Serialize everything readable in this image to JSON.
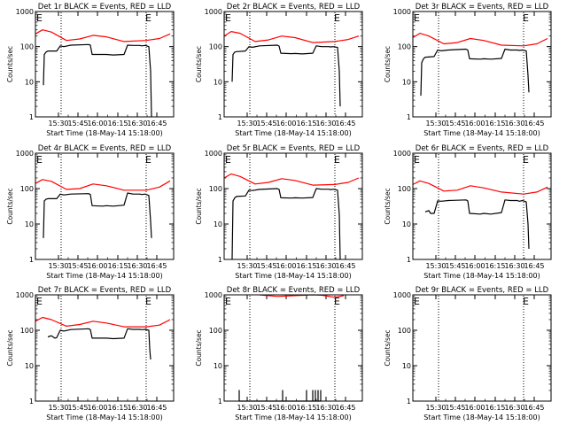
{
  "chart_data": [
    {
      "type": "line",
      "title": "Det 1r BLACK = Events, RED = LLD",
      "xlabel": "Start Time (18-May-14 15:18:00)",
      "ylabel": "Counts/sec",
      "yscale": "log",
      "ylim": [
        1,
        1000
      ],
      "x_tick_labels": [
        "15:30",
        "15:45",
        "16:00",
        "16:15",
        "16:30",
        "16:45"
      ],
      "markers": [
        "E",
        "E"
      ],
      "series": [
        {
          "color": "#ff0000",
          "x": [
            0,
            8,
            18,
            35,
            50,
            65,
            80,
            100,
            125,
            140,
            152
          ],
          "y": [
            230,
            300,
            260,
            150,
            165,
            210,
            190,
            140,
            150,
            170,
            230
          ]
        },
        {
          "color": "#000000",
          "x": [
            9,
            10,
            12,
            14,
            24,
            28,
            32,
            40,
            60,
            62,
            64,
            76,
            80,
            88,
            100,
            104,
            110,
            118,
            120,
            124,
            128,
            130,
            131
          ],
          "y": [
            8,
            60,
            70,
            75,
            75,
            105,
            100,
            110,
            115,
            110,
            60,
            60,
            60,
            58,
            60,
            110,
            108,
            108,
            105,
            108,
            100,
            20,
            1
          ]
        }
      ]
    },
    {
      "type": "line",
      "title": "Det 2r BLACK = Events, RED = LLD",
      "xlabel": "Start Time (18-May-14 15:18:00)",
      "ylabel": "Counts/sec",
      "yscale": "log",
      "ylim": [
        1,
        1000
      ],
      "x_tick_labels": [
        "15:30",
        "15:45",
        "16:00",
        "16:15",
        "16:30",
        "16:45"
      ],
      "markers": [
        "E",
        "E"
      ],
      "series": [
        {
          "color": "#ff0000",
          "x": [
            0,
            8,
            18,
            35,
            50,
            65,
            80,
            100,
            125,
            140,
            152
          ],
          "y": [
            200,
            270,
            240,
            140,
            155,
            200,
            180,
            130,
            140,
            160,
            200
          ]
        },
        {
          "color": "#000000",
          "x": [
            9,
            10,
            12,
            14,
            24,
            28,
            32,
            40,
            60,
            62,
            64,
            76,
            80,
            88,
            100,
            104,
            110,
            118,
            120,
            124,
            128,
            130,
            131
          ],
          "y": [
            10,
            60,
            70,
            72,
            75,
            100,
            96,
            105,
            110,
            104,
            65,
            63,
            64,
            62,
            65,
            105,
            100,
            100,
            98,
            100,
            95,
            20,
            2
          ]
        }
      ]
    },
    {
      "type": "line",
      "title": "Det 3r BLACK = Events, RED = LLD",
      "xlabel": "Start Time (18-May-14 15:18:00)",
      "ylabel": "Counts/sec",
      "yscale": "log",
      "ylim": [
        1,
        1000
      ],
      "x_tick_labels": [
        "15:30",
        "15:45",
        "16:00",
        "16:15",
        "16:30",
        "16:45"
      ],
      "markers": [
        "E",
        "E"
      ],
      "series": [
        {
          "color": "#ff0000",
          "x": [
            0,
            8,
            18,
            35,
            50,
            65,
            80,
            100,
            125,
            140,
            152
          ],
          "y": [
            180,
            240,
            200,
            120,
            130,
            170,
            150,
            110,
            105,
            120,
            170
          ]
        },
        {
          "color": "#000000",
          "x": [
            9,
            10,
            12,
            14,
            24,
            28,
            32,
            40,
            60,
            62,
            64,
            76,
            80,
            88,
            100,
            104,
            110,
            118,
            120,
            124,
            128,
            130,
            131
          ],
          "y": [
            4,
            35,
            45,
            50,
            52,
            80,
            76,
            80,
            85,
            80,
            45,
            44,
            45,
            44,
            46,
            85,
            80,
            80,
            78,
            80,
            76,
            15,
            5
          ]
        }
      ]
    },
    {
      "type": "line",
      "title": "Det 4r BLACK = Events, RED = LLD",
      "xlabel": "Start Time (18-May-14 15:18:00)",
      "ylabel": "Counts/sec",
      "yscale": "log",
      "ylim": [
        1,
        1000
      ],
      "x_tick_labels": [
        "15:30",
        "15:45",
        "16:00",
        "16:15",
        "16:30",
        "16:45"
      ],
      "markers": [
        "E",
        "E"
      ],
      "series": [
        {
          "color": "#ff0000",
          "x": [
            0,
            8,
            18,
            35,
            50,
            65,
            80,
            100,
            125,
            140,
            152
          ],
          "y": [
            140,
            180,
            160,
            95,
            100,
            135,
            120,
            90,
            90,
            110,
            165
          ]
        },
        {
          "color": "#000000",
          "x": [
            9,
            10,
            12,
            14,
            24,
            28,
            32,
            40,
            60,
            62,
            64,
            76,
            80,
            88,
            100,
            104,
            110,
            118,
            120,
            124,
            128,
            130,
            131
          ],
          "y": [
            4,
            45,
            50,
            52,
            52,
            70,
            66,
            70,
            72,
            68,
            33,
            32,
            33,
            32,
            34,
            75,
            70,
            70,
            68,
            70,
            64,
            12,
            4
          ]
        }
      ]
    },
    {
      "type": "line",
      "title": "Det 5r BLACK = Events, RED = LLD",
      "xlabel": "Start Time (18-May-14 15:18:00)",
      "ylabel": "Counts/sec",
      "yscale": "log",
      "ylim": [
        1,
        1000
      ],
      "x_tick_labels": [
        "15:30",
        "15:45",
        "16:00",
        "16:15",
        "16:30",
        "16:45"
      ],
      "markers": [
        "E",
        "E"
      ],
      "series": [
        {
          "color": "#ff0000",
          "x": [
            0,
            8,
            18,
            35,
            50,
            65,
            80,
            100,
            125,
            140,
            152
          ],
          "y": [
            200,
            260,
            220,
            135,
            150,
            190,
            170,
            125,
            130,
            150,
            200
          ]
        },
        {
          "color": "#000000",
          "x": [
            9,
            10,
            12,
            14,
            24,
            28,
            32,
            40,
            60,
            62,
            64,
            76,
            80,
            88,
            100,
            104,
            110,
            118,
            120,
            124,
            128,
            130,
            131
          ],
          "y": [
            1,
            45,
            55,
            60,
            62,
            90,
            88,
            95,
            100,
            95,
            55,
            54,
            55,
            54,
            56,
            100,
            96,
            96,
            94,
            96,
            90,
            18,
            1
          ]
        }
      ]
    },
    {
      "type": "line",
      "title": "Det 6r BLACK = Events, RED = LLD",
      "xlabel": "Start Time (18-May-14 15:18:00)",
      "ylabel": "Counts/sec",
      "yscale": "log",
      "ylim": [
        1,
        1000
      ],
      "x_tick_labels": [
        "15:30",
        "15:45",
        "16:00",
        "16:15",
        "16:30",
        "16:45"
      ],
      "markers": [
        "E",
        "E"
      ],
      "series": [
        {
          "color": "#ff0000",
          "x": [
            0,
            8,
            18,
            35,
            50,
            65,
            80,
            100,
            125,
            140,
            152
          ],
          "y": [
            130,
            165,
            140,
            85,
            90,
            120,
            105,
            80,
            70,
            80,
            110
          ]
        },
        {
          "color": "#000000",
          "x": [
            14,
            18,
            20,
            24,
            28,
            32,
            40,
            60,
            62,
            64,
            76,
            80,
            88,
            100,
            104,
            110,
            118,
            120,
            124,
            128,
            130,
            131
          ],
          "y": [
            22,
            24,
            20,
            20,
            45,
            44,
            46,
            48,
            45,
            20,
            19,
            20,
            19,
            21,
            48,
            46,
            46,
            44,
            46,
            42,
            10,
            2
          ]
        }
      ]
    },
    {
      "type": "line",
      "title": "Det 7r BLACK = Events, RED = LLD",
      "xlabel": "Start Time (18-May-14 15:18:00)",
      "ylabel": "Counts/sec",
      "yscale": "log",
      "ylim": [
        1,
        1000
      ],
      "x_tick_labels": [
        "15:30",
        "15:45",
        "16:00",
        "16:15",
        "16:30",
        "16:45"
      ],
      "markers": [
        "E",
        "E"
      ],
      "series": [
        {
          "color": "#ff0000",
          "x": [
            0,
            8,
            18,
            35,
            50,
            65,
            80,
            100,
            125,
            140,
            152
          ],
          "y": [
            180,
            230,
            200,
            130,
            145,
            180,
            160,
            125,
            125,
            140,
            200
          ]
        },
        {
          "color": "#000000",
          "x": [
            14,
            18,
            22,
            24,
            28,
            32,
            40,
            60,
            62,
            64,
            76,
            80,
            88,
            100,
            104,
            110,
            118,
            120,
            124,
            128,
            129,
            130
          ],
          "y": [
            65,
            70,
            60,
            62,
            100,
            95,
            105,
            110,
            104,
            60,
            60,
            60,
            58,
            60,
            110,
            106,
            106,
            104,
            106,
            100,
            30,
            15
          ]
        }
      ]
    },
    {
      "type": "line",
      "title": "Det 8r BLACK = Events, RED = LLD",
      "xlabel": "Start Time (18-May-14 15:18:00)",
      "ylabel": "Counts/sec",
      "yscale": "log",
      "ylim": [
        1,
        1000
      ],
      "x_tick_labels": [
        "15:30",
        "15:45",
        "16:00",
        "16:15",
        "16:30",
        "16:45"
      ],
      "markers": [
        "E",
        "E"
      ],
      "series": [
        {
          "color": "#ff0000",
          "x": [
            40,
            60,
            80,
            100,
            110,
            125,
            135
          ],
          "y": [
            1000,
            900,
            950,
            1000,
            980,
            850,
            950
          ]
        },
        {
          "color": "#000000",
          "x": [
            17,
            17,
            17,
            66,
            66,
            66,
            93,
            93,
            93,
            100,
            100,
            100,
            103,
            103,
            103,
            106,
            106,
            106,
            109,
            109,
            109
          ],
          "y": [
            1,
            2,
            1,
            1,
            2,
            1,
            1,
            2,
            1,
            1,
            2,
            1,
            1,
            2,
            1,
            1,
            2,
            1,
            1,
            2,
            1
          ]
        }
      ]
    },
    {
      "type": "line",
      "title": "Det 9r BLACK = Events, RED = LLD",
      "xlabel": "Start Time (18-May-14 15:18:00)",
      "ylabel": "Counts/sec",
      "yscale": "log",
      "ylim": [
        1,
        1000
      ],
      "x_tick_labels": [
        "15:30",
        "15:45",
        "16:00",
        "16:15",
        "16:30",
        "16:45"
      ],
      "markers": [
        "E",
        "E"
      ],
      "series": []
    }
  ]
}
